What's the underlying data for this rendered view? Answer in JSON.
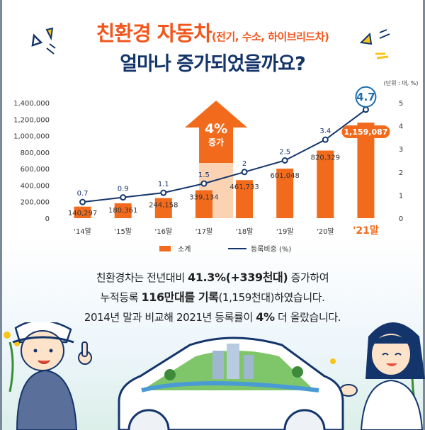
{
  "title": {
    "main": "친환경 자동차",
    "main_sub": "(전기, 수소, 하이브리드차)",
    "line2": "얼마나 증가되었을까요?"
  },
  "badge": {
    "value": "4%",
    "label": "증가"
  },
  "unit_note": "(단위 : 대, %)",
  "summary": {
    "line1_pre": "친환경차는 전년대비 ",
    "line1_bold": "41.3%(+339천대)",
    "line1_post": " 증가하여",
    "line2_pre": "누적등록 ",
    "line2_bold": "116만대를 기록",
    "line2_post": "(1,159천대)하였습니다.",
    "line3_pre": "2014년 말과 비교해 2021년 등록률이 ",
    "line3_bold": "4%",
    "line3_post": " 더 올랐습니다."
  },
  "colors": {
    "bar": "#f26b1d",
    "line": "#14356b",
    "highlight": "#1e6fb0",
    "title_orange": "#f2561d",
    "title_navy": "#14356b"
  },
  "chart_data": {
    "type": "bar",
    "categories": [
      "'14말",
      "'15말",
      "'16말",
      "'17말",
      "'18말",
      "'19말",
      "'20말",
      "'21말"
    ],
    "series": [
      {
        "name": "소계",
        "type": "bar",
        "axis": "left",
        "values": [
          140297,
          180361,
          244158,
          339134,
          461733,
          601048,
          820329,
          1159087
        ],
        "labels": [
          "140,297",
          "180,361",
          "244,158",
          "339,134",
          "461,733",
          "601,048",
          "820,329",
          "1,159,087"
        ]
      },
      {
        "name": "등록비중 (%)",
        "type": "line",
        "axis": "right",
        "values": [
          0.7,
          0.9,
          1.1,
          1.5,
          2,
          2.5,
          3.4,
          4.7
        ],
        "labels": [
          "0.7",
          "0.9",
          "1.1",
          "1.5",
          "2",
          "2.5",
          "3.4",
          "4.7"
        ]
      }
    ],
    "y_left": {
      "ylim": [
        0,
        1400000
      ],
      "ticks": [
        "0",
        "200,000",
        "400,000",
        "600,000",
        "800,000",
        "1,000,000",
        "1,200,000",
        "1,400,000"
      ]
    },
    "y_right": {
      "ylim": [
        0,
        5
      ],
      "ticks": [
        "0",
        "1",
        "2",
        "3",
        "4",
        "5"
      ]
    },
    "legend": "bottom-center",
    "grid": false
  }
}
